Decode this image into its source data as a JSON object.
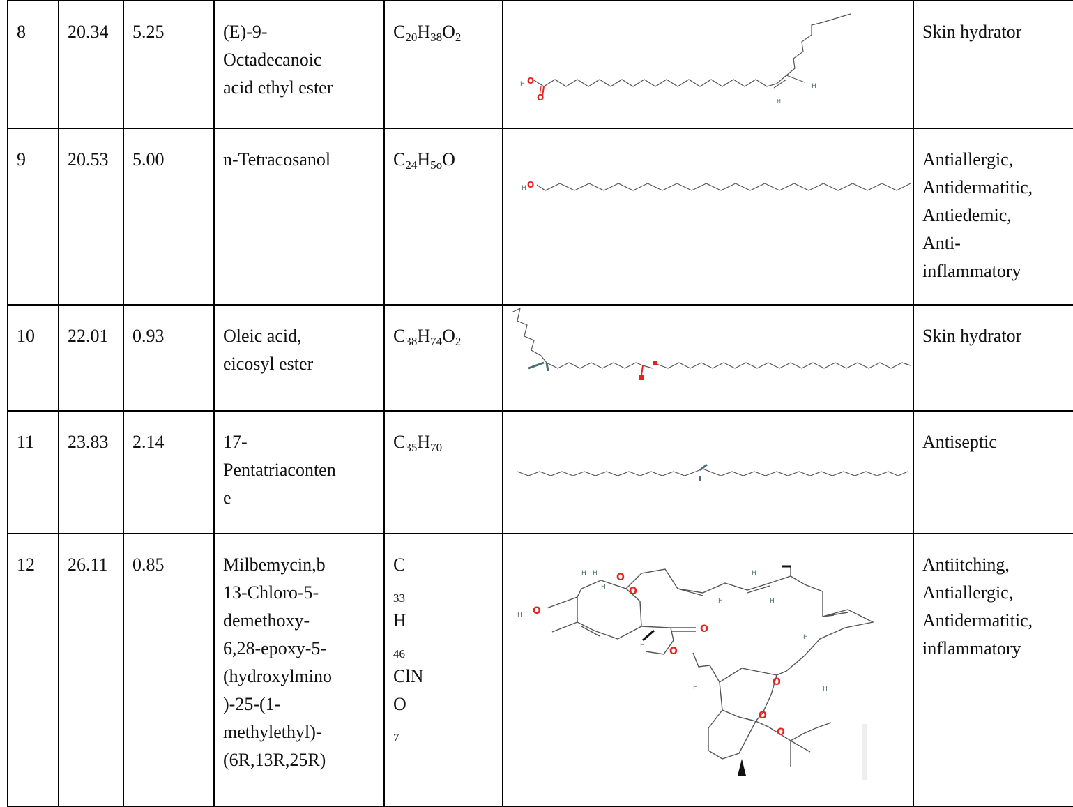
{
  "rows": [
    {
      "no": "8",
      "rt": "20.34",
      "area": "5.25",
      "name": [
        "(E)-9-",
        "Octadecanoic",
        "acid ethyl ester"
      ],
      "formula": [
        [
          "C",
          "20"
        ],
        [
          "H",
          "38"
        ],
        [
          "O",
          "2"
        ]
      ],
      "activity": [
        "Skin hydrator"
      ],
      "structure_icon": "ethyl-ester-chain-structure"
    },
    {
      "no": "9",
      "rt": "20.53",
      "area": "5.00",
      "name": [
        "n-Tetracosanol"
      ],
      "formula": [
        [
          "C",
          "24"
        ],
        [
          "H",
          "5o"
        ],
        [
          "O",
          ""
        ]
      ],
      "activity": [
        "Antiallergic,",
        "Antidermatitic,",
        "Antiedemic,",
        "Anti-",
        "inflammatory"
      ],
      "structure_icon": "tetracosanol-chain-structure"
    },
    {
      "no": "10",
      "rt": "22.01",
      "area": "0.93",
      "name": [
        "Oleic acid,",
        "eicosyl ester"
      ],
      "formula": [
        [
          "C",
          "38"
        ],
        [
          "H",
          "74"
        ],
        [
          "O",
          "2"
        ]
      ],
      "activity": [
        "Skin hydrator"
      ],
      "structure_icon": "oleic-ester-structure"
    },
    {
      "no": "11",
      "rt": "23.83",
      "area": "2.14",
      "name": [
        "17-",
        "Pentatriaconten",
        "e"
      ],
      "formula": [
        [
          "C",
          "35"
        ],
        [
          "H",
          "70"
        ]
      ],
      "activity": [
        "Antiseptic"
      ],
      "structure_icon": "pentatriacontene-structure"
    },
    {
      "no": "12",
      "rt": "26.11",
      "area": "0.85",
      "name": [
        "Milbemycin,b",
        "13-Chloro-5-",
        "demethoxy-",
        "6,28-epoxy-5-",
        "(hydroxylmino",
        ")-25-(1-",
        "methylethyl)-",
        "(6R,13R,25R)"
      ],
      "formula_lines": [
        [
          [
            "C",
            "33"
          ],
          [
            "H",
            "46"
          ],
          [
            "ClN",
            ""
          ]
        ],
        [
          [
            "O",
            "7"
          ]
        ]
      ],
      "activity": [
        "Antiitching,",
        "Antiallergic,",
        "Antidermatitic,",
        "inflammatory"
      ],
      "structure_icon": "milbemycin-macrocycle-structure"
    }
  ],
  "atom_labels": {
    "h": "H",
    "o": "O",
    "ho": "H O"
  },
  "colors": {
    "oxygen": "#e8201e",
    "carbon": "#111111",
    "hydrogen": "#4b6e74"
  }
}
